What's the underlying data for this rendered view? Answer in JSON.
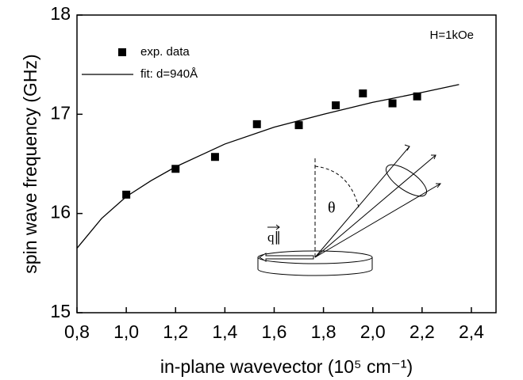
{
  "chart_data": {
    "type": "scatter",
    "xlabel": "in-plane wavevector (10⁵ cm⁻¹)",
    "ylabel": "spin wave frequency (GHz)",
    "xlim": [
      0.8,
      2.5
    ],
    "ylim": [
      15,
      18
    ],
    "xticks": [
      {
        "value": 0.8,
        "label": "0,8"
      },
      {
        "value": 1.0,
        "label": "1,0"
      },
      {
        "value": 1.2,
        "label": "1,2"
      },
      {
        "value": 1.4,
        "label": "1,4"
      },
      {
        "value": 1.6,
        "label": "1,6"
      },
      {
        "value": 1.8,
        "label": "1,8"
      },
      {
        "value": 2.0,
        "label": "2,0"
      },
      {
        "value": 2.2,
        "label": "2,2"
      },
      {
        "value": 2.4,
        "label": "2,4"
      }
    ],
    "yticks": [
      15,
      16,
      17,
      18
    ],
    "series": [
      {
        "name": "exp. data",
        "color": "#000000",
        "kind": "markers",
        "x": [
          1.0,
          1.2,
          1.36,
          1.53,
          1.7,
          1.85,
          1.96,
          2.08,
          2.18
        ],
        "values": [
          16.19,
          16.45,
          16.57,
          16.9,
          16.89,
          17.09,
          17.21,
          17.11,
          17.18
        ]
      },
      {
        "name": "fit: d=940Å",
        "color": "#000000",
        "kind": "line",
        "x": [
          0.8,
          0.9,
          1.0,
          1.1,
          1.2,
          1.4,
          1.6,
          1.8,
          2.0,
          2.2,
          2.35
        ],
        "values": [
          15.65,
          15.95,
          16.17,
          16.33,
          16.47,
          16.7,
          16.87,
          17.0,
          17.12,
          17.22,
          17.3
        ]
      }
    ],
    "annotations": [
      "H=1kOe",
      "θ",
      "q∥"
    ]
  }
}
